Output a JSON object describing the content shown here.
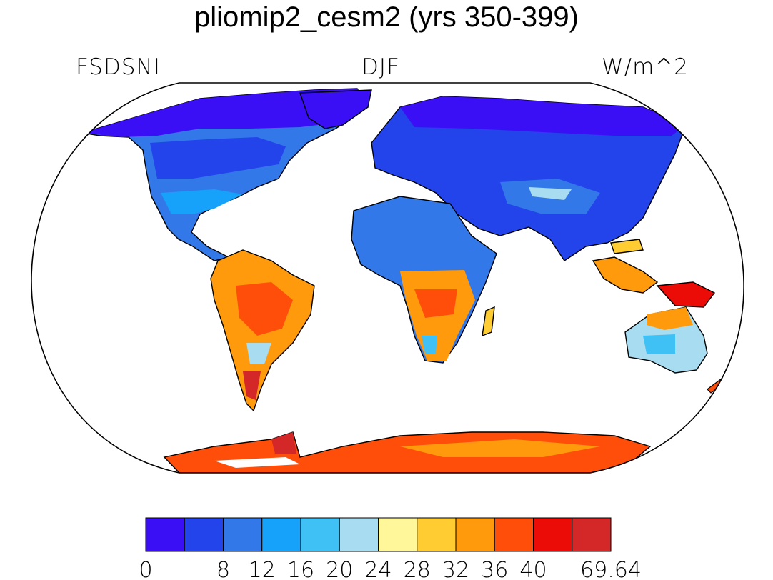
{
  "title": "pliomip2_cesm2 (yrs 350-399)",
  "left_label": "FSDSNI",
  "center_label": "DJF",
  "right_label": "W/m^2",
  "colorbar": {
    "colors": [
      "#3a0ff5",
      "#2343eb",
      "#3378e8",
      "#16a1fb",
      "#40c1f6",
      "#a8dcf0",
      "#fff79a",
      "#ffcd31",
      "#ff9a0d",
      "#ff4e0a",
      "#eb0c08",
      "#d42828"
    ],
    "labels": [
      "0",
      "8",
      "12",
      "16",
      "20",
      "24",
      "28",
      "32",
      "36",
      "40",
      "69.64"
    ]
  },
  "map_colors": {
    "ocean": "#ffffff",
    "coast": "#000000"
  }
}
